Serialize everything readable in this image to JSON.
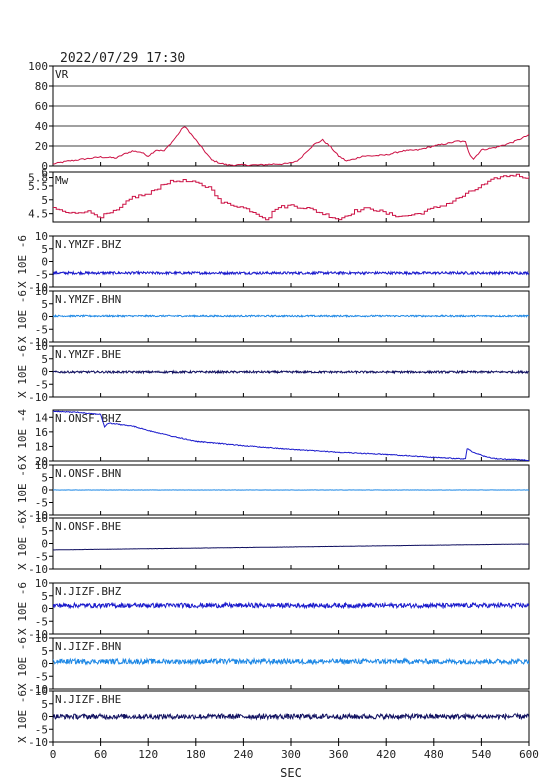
{
  "header": {
    "datetime": "2022/07/29  17:30"
  },
  "chart_data": {
    "type": "line",
    "xlabel": "SEC",
    "xlim": [
      0,
      600
    ],
    "xticks": [
      0,
      60,
      120,
      180,
      240,
      300,
      360,
      420,
      480,
      540,
      600
    ],
    "panels": [
      {
        "id": "vr",
        "label": "VR",
        "color": "#cc1144",
        "ylim": [
          0,
          100
        ],
        "yticks": [
          0,
          20,
          40,
          60,
          80,
          100
        ],
        "grid": true,
        "series": {
          "x": [
            0,
            20,
            40,
            60,
            80,
            90,
            100,
            110,
            120,
            130,
            140,
            150,
            160,
            165,
            170,
            180,
            190,
            200,
            210,
            220,
            240,
            260,
            280,
            290,
            300,
            310,
            320,
            330,
            340,
            350,
            360,
            370,
            380,
            390,
            400,
            420,
            440,
            460,
            480,
            500,
            510,
            520,
            525,
            530,
            540,
            560,
            580,
            600
          ],
          "y": [
            2,
            5,
            7,
            9,
            8,
            12,
            15,
            14,
            10,
            16,
            15,
            24,
            34,
            40,
            36,
            26,
            16,
            6,
            3,
            1,
            1,
            1,
            2,
            2,
            3,
            6,
            15,
            22,
            26,
            19,
            10,
            5,
            7,
            10,
            10,
            11,
            15,
            16,
            20,
            23,
            25,
            24,
            12,
            7,
            16,
            19,
            24,
            31
          ]
        }
      },
      {
        "id": "mw",
        "label": "Mw",
        "color": "#cc1144",
        "ylim": [
          4.2,
          6.0
        ],
        "yticks": [
          4.5,
          5.0,
          5.5,
          5.8,
          6.0
        ],
        "grid": false,
        "series": {
          "x": [
            0,
            20,
            40,
            60,
            80,
            100,
            120,
            140,
            160,
            180,
            200,
            210,
            230,
            250,
            270,
            280,
            300,
            320,
            340,
            360,
            380,
            400,
            420,
            440,
            460,
            480,
            500,
            520,
            540,
            560,
            580,
            600
          ],
          "y": [
            4.7,
            4.5,
            4.6,
            4.4,
            4.6,
            5.1,
            5.2,
            5.6,
            5.7,
            5.6,
            5.4,
            4.9,
            4.8,
            4.6,
            4.3,
            4.7,
            4.8,
            4.7,
            4.5,
            4.3,
            4.6,
            4.7,
            4.5,
            4.4,
            4.5,
            4.7,
            4.9,
            5.2,
            5.5,
            5.8,
            5.9,
            5.8
          ]
        }
      },
      {
        "id": "ymzf-bhz",
        "label": "N.YMZF.BHZ",
        "ylabel": "X 10E -6",
        "color": "#1a1acc",
        "ylim": [
          -10,
          10
        ],
        "yticks": [
          -10,
          -5,
          0,
          5,
          10
        ],
        "baseline": -4.5,
        "noise": 0.5,
        "trend": 0
      },
      {
        "id": "ymzf-bhn",
        "label": "N.YMZF.BHN",
        "ylabel": "X 10E -6",
        "color": "#1e88e5",
        "ylim": [
          -10,
          10
        ],
        "yticks": [
          -10,
          -5,
          0,
          5,
          10
        ],
        "baseline": 0.2,
        "noise": 0.3,
        "trend": 0
      },
      {
        "id": "ymzf-bhe",
        "label": "N.YMZF.BHE",
        "ylabel": "X 10E -6",
        "color": "#101060",
        "ylim": [
          -10,
          10
        ],
        "yticks": [
          -10,
          -5,
          0,
          5,
          10
        ],
        "baseline": -0.2,
        "noise": 0.4,
        "trend": 0
      },
      {
        "id": "onsf-bhz",
        "label": "N.ONSF.BHZ",
        "ylabel": "X 10E -4",
        "color": "#1a1acc",
        "ylim": [
          20,
          13
        ],
        "yticks": [
          14,
          16,
          18,
          20
        ],
        "series": {
          "x": [
            0,
            30,
            60,
            65,
            70,
            100,
            120,
            150,
            180,
            210,
            240,
            300,
            360,
            420,
            480,
            515,
            520,
            522,
            530,
            545,
            560,
            580,
            600
          ],
          "y": [
            13.2,
            13.3,
            13.6,
            15.3,
            14.8,
            15.2,
            15.8,
            16.6,
            17.3,
            17.6,
            17.9,
            18.4,
            18.8,
            19.1,
            19.5,
            19.7,
            19.7,
            18.3,
            18.8,
            19.4,
            19.7,
            19.8,
            19.9
          ]
        }
      },
      {
        "id": "onsf-bhn",
        "label": "N.ONSF.BHN",
        "ylabel": "X 10E -6",
        "color": "#1e88e5",
        "ylim": [
          -10,
          10
        ],
        "yticks": [
          -10,
          -5,
          0,
          5,
          10
        ],
        "baseline": 0,
        "noise": 0.06,
        "trend": 0
      },
      {
        "id": "onsf-bhe",
        "label": "N.ONSF.BHE",
        "ylabel": "X 10E -6",
        "color": "#101060",
        "ylim": [
          -10,
          10
        ],
        "yticks": [
          -10,
          -5,
          0,
          5,
          10
        ],
        "baseline": -2.5,
        "noise": 0.04,
        "trend": 2.3
      },
      {
        "id": "jizf-bhz",
        "label": "N.JIZF.BHZ",
        "ylabel": "X 10E -6",
        "color": "#1a1acc",
        "ylim": [
          -10,
          10
        ],
        "yticks": [
          -10,
          -5,
          0,
          5,
          10
        ],
        "baseline": 1.2,
        "noise": 0.9,
        "trend": 0
      },
      {
        "id": "jizf-bhn",
        "label": "N.JIZF.BHN",
        "ylabel": "X 10E -6",
        "color": "#1e88e5",
        "ylim": [
          -10,
          10
        ],
        "yticks": [
          -10,
          -5,
          0,
          5,
          10
        ],
        "baseline": 0.8,
        "noise": 1.0,
        "trend": 0
      },
      {
        "id": "jizf-bhe",
        "label": "N.JIZF.BHE",
        "ylabel": "X 10E -6",
        "color": "#101060",
        "ylim": [
          -10,
          10
        ],
        "yticks": [
          -10,
          -5,
          0,
          5,
          10
        ],
        "baseline": 0,
        "noise": 1.0,
        "trend": 0
      }
    ]
  }
}
